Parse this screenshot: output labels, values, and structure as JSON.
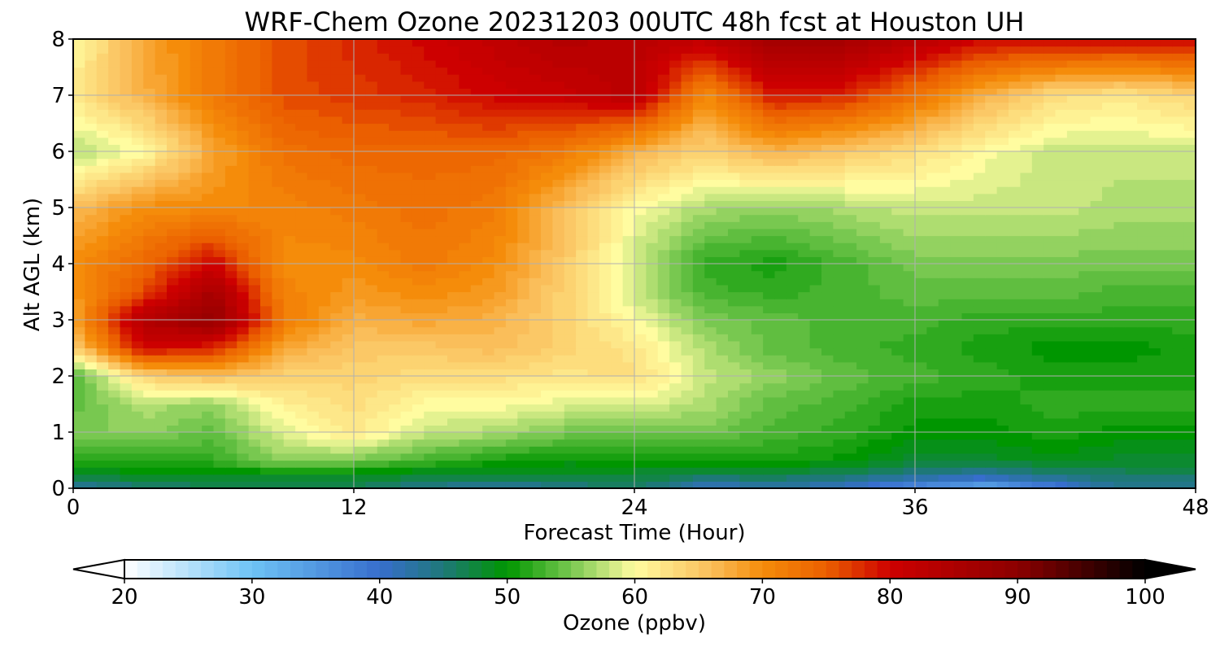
{
  "chart_data": {
    "type": "heatmap",
    "title": "WRF-Chem Ozone  20231203 00UTC 48h fcst at Houston UH",
    "xlabel": "Forecast Time (Hour)",
    "ylabel": "Alt AGL (km)",
    "xlim": [
      0,
      48
    ],
    "ylim": [
      0,
      8
    ],
    "xticks": [
      0,
      12,
      24,
      36,
      48
    ],
    "yticks": [
      0,
      1,
      2,
      3,
      4,
      5,
      6,
      7,
      8
    ],
    "grid": true,
    "colorbar": {
      "label": "Ozone  (ppbv)",
      "min": 20,
      "max": 100,
      "ticks": [
        20,
        30,
        40,
        50,
        60,
        70,
        80,
        90,
        100
      ],
      "extend": "both",
      "placement": "bottom"
    },
    "x": [
      0,
      3,
      6,
      9,
      12,
      15,
      18,
      21,
      24,
      27,
      30,
      33,
      36,
      39,
      42,
      45,
      48
    ],
    "y": [
      0,
      0.25,
      0.5,
      1,
      1.5,
      2,
      2.5,
      3,
      3.5,
      4,
      5,
      6,
      7,
      8
    ],
    "z": [
      [
        42,
        45,
        46,
        47,
        46,
        44,
        42,
        44,
        46,
        40,
        42,
        40,
        36,
        32,
        38,
        44,
        43
      ],
      [
        48,
        49,
        49,
        49,
        49,
        48,
        48,
        48,
        48,
        47,
        47,
        46,
        44,
        43,
        45,
        46,
        46
      ],
      [
        52,
        52,
        52,
        56,
        55,
        53,
        51,
        50,
        50,
        51,
        51,
        50,
        48,
        48,
        49,
        48,
        48
      ],
      [
        55,
        56,
        54,
        59,
        62,
        58,
        57,
        55,
        54,
        55,
        53,
        52,
        50,
        50,
        51,
        50,
        50
      ],
      [
        54,
        57,
        56,
        61,
        63,
        60,
        60,
        59,
        59,
        57,
        54,
        53,
        51,
        51,
        52,
        52,
        52
      ],
      [
        53,
        64,
        66,
        64,
        64,
        63,
        63,
        62,
        63,
        58,
        56,
        54,
        53,
        52,
        51,
        51,
        51
      ],
      [
        64,
        80,
        78,
        68,
        65,
        65,
        66,
        64,
        62,
        57,
        54,
        53,
        52,
        51,
        50,
        50,
        51
      ],
      [
        68,
        84,
        89,
        72,
        67,
        68,
        67,
        64,
        60,
        55,
        54,
        53,
        53,
        52,
        52,
        52,
        52
      ],
      [
        69,
        76,
        86,
        71,
        69,
        70,
        69,
        64,
        58,
        53,
        52,
        53,
        54,
        54,
        54,
        53,
        53
      ],
      [
        70,
        74,
        80,
        70,
        70,
        72,
        70,
        65,
        58,
        52,
        51,
        53,
        55,
        55,
        55,
        55,
        55
      ],
      [
        66,
        70,
        70,
        71,
        72,
        73,
        72,
        66,
        60,
        57,
        56,
        57,
        58,
        58,
        58,
        57,
        57
      ],
      [
        57,
        60,
        68,
        73,
        74,
        74,
        74,
        72,
        67,
        64,
        67,
        65,
        63,
        60,
        58,
        58,
        58
      ],
      [
        62,
        67,
        72,
        76,
        77,
        78,
        80,
        81,
        83,
        70,
        79,
        78,
        73,
        67,
        63,
        62,
        64
      ],
      [
        60,
        68,
        72,
        76,
        78,
        80,
        82,
        84,
        83,
        82,
        87,
        86,
        83,
        80,
        80,
        80,
        80
      ]
    ]
  }
}
